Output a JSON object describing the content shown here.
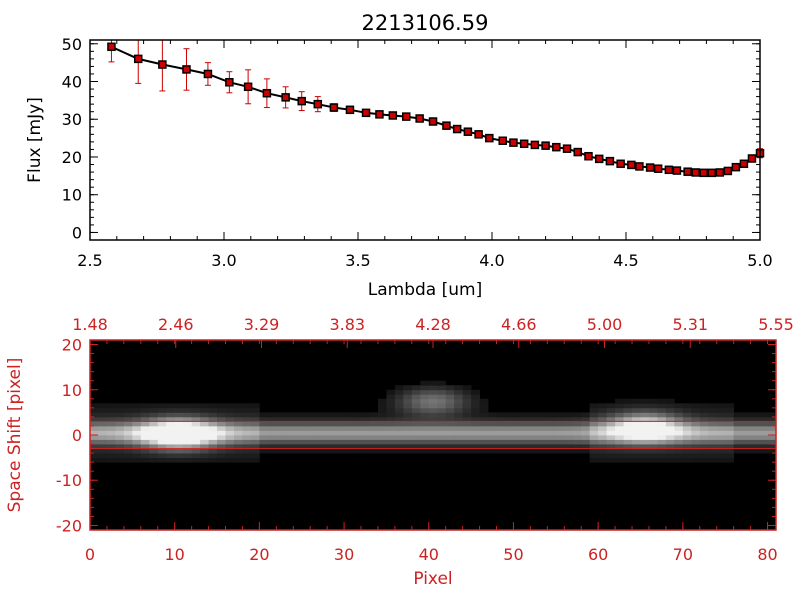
{
  "chart_data": [
    {
      "type": "line",
      "title": "2213106.59",
      "xlabel": "Lambda [um]",
      "ylabel": "Flux [mJy]",
      "xlim": [
        2.5,
        5.0
      ],
      "ylim": [
        -2,
        51
      ],
      "xticks": [
        "2.5",
        "3.0",
        "3.5",
        "4.0",
        "4.5",
        "5.0"
      ],
      "xtick_values": [
        2.5,
        3.0,
        3.5,
        4.0,
        4.5,
        5.0
      ],
      "yticks": [
        "0",
        "10",
        "20",
        "30",
        "40",
        "50"
      ],
      "ytick_values": [
        0,
        10,
        20,
        30,
        40,
        50
      ],
      "grid": false,
      "colors": {
        "line": "#000000",
        "marker": "#cc0000",
        "errorbar": "#cc0000"
      },
      "series": [
        {
          "x": [
            2.58,
            2.68,
            2.77,
            2.86,
            2.94,
            3.02,
            3.09,
            3.16,
            3.23,
            3.29,
            3.35,
            3.41,
            3.47,
            3.53,
            3.58,
            3.63,
            3.68,
            3.73,
            3.78,
            3.83,
            3.87,
            3.91,
            3.95,
            3.99,
            4.04,
            4.08,
            4.12,
            4.16,
            4.2,
            4.24,
            4.28,
            4.32,
            4.36,
            4.4,
            4.44,
            4.48,
            4.52,
            4.55,
            4.59,
            4.62,
            4.66,
            4.69,
            4.73,
            4.76,
            4.79,
            4.82,
            4.85,
            4.88,
            4.91,
            4.94,
            4.97,
            5.0
          ],
          "values": [
            49.2,
            46.0,
            44.5,
            43.2,
            42.0,
            39.8,
            38.6,
            36.9,
            35.8,
            34.8,
            34.0,
            33.1,
            32.5,
            31.7,
            31.3,
            31.0,
            30.7,
            30.2,
            29.4,
            28.3,
            27.4,
            26.7,
            26.0,
            25.0,
            24.3,
            23.8,
            23.5,
            23.2,
            23.0,
            22.6,
            22.2,
            21.3,
            20.2,
            19.5,
            18.9,
            18.2,
            17.9,
            17.5,
            17.2,
            16.9,
            16.6,
            16.4,
            16.1,
            15.9,
            15.8,
            15.8,
            15.9,
            16.3,
            17.3,
            18.2,
            19.6,
            21.0
          ],
          "errors": [
            4.0,
            6.5,
            7.0,
            5.5,
            3.0,
            2.8,
            4.5,
            3.8,
            2.8,
            2.5,
            2.0,
            1.0,
            0.8,
            0.7,
            0.6,
            0.6,
            0.6,
            0.6,
            0.6,
            0.6,
            0.6,
            0.6,
            0.6,
            0.6,
            0.6,
            0.6,
            0.6,
            0.6,
            0.6,
            0.6,
            0.6,
            0.6,
            0.6,
            0.6,
            0.6,
            0.6,
            0.6,
            0.6,
            0.6,
            0.6,
            0.6,
            0.6,
            0.6,
            0.6,
            0.6,
            0.6,
            0.6,
            0.6,
            0.6,
            0.6,
            0.6,
            1.2
          ]
        }
      ]
    },
    {
      "type": "heatmap",
      "xlabel": "Pixel",
      "ylabel": "Space Shift [pixel]",
      "xlim": [
        0,
        81
      ],
      "ylim": [
        -21,
        21
      ],
      "xticks": [
        "0",
        "10",
        "20",
        "30",
        "40",
        "50",
        "60",
        "70",
        "80"
      ],
      "xtick_values": [
        0,
        10,
        20,
        30,
        40,
        50,
        60,
        70,
        80
      ],
      "yticks": [
        "-20",
        "-10",
        "0",
        "10",
        "20"
      ],
      "ytick_values": [
        -20,
        -10,
        0,
        10,
        20
      ],
      "top_axis_labels": [
        "1.48",
        "2.46",
        "3.29",
        "3.83",
        "4.28",
        "4.66",
        "5.00",
        "5.31",
        "5.55"
      ],
      "extraction_aperture": [
        -3,
        3
      ],
      "colors": {
        "axis": "#cc2222",
        "background": "#000000",
        "aperture": "#cc2222"
      },
      "trace": {
        "center": 0.5,
        "sigma": 1.6,
        "baseline": 0.55
      },
      "sources": [
        {
          "x": 10.5,
          "y": 0.3,
          "amplitude": 1.0
        },
        {
          "x": 40.5,
          "y": 7.5,
          "amplitude": 0.45
        },
        {
          "x": 65.5,
          "y": 1.8,
          "amplitude": 0.75
        }
      ]
    }
  ]
}
